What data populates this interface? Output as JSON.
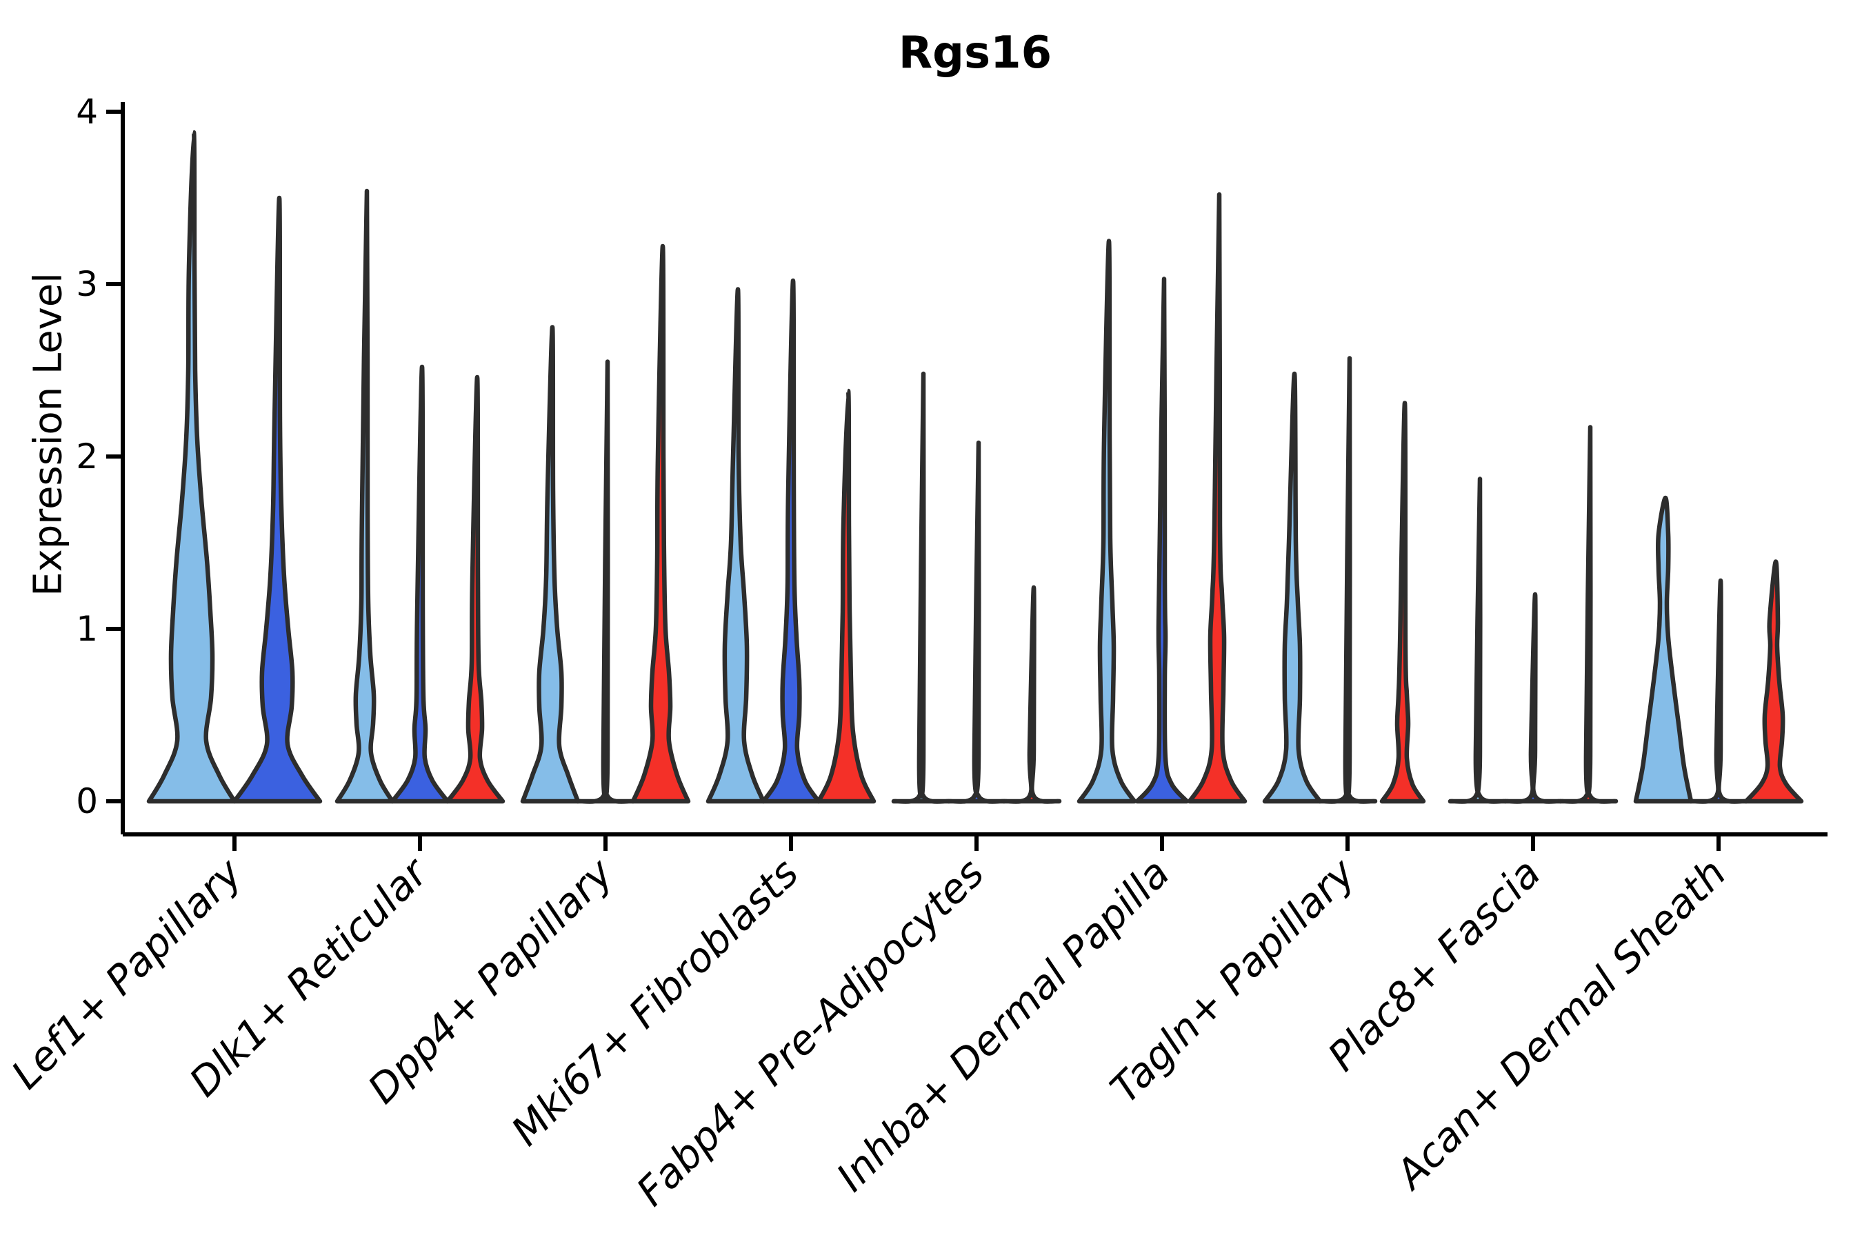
{
  "chart_data": {
    "type": "violin",
    "title": "Rgs16",
    "xlabel": "",
    "ylabel": "Expression Level",
    "ylim": [
      0,
      4
    ],
    "yticks": [
      0,
      1,
      2,
      3,
      4
    ],
    "grid": false,
    "legend_position": "none",
    "axis_color": "#000000",
    "outline_color": "#2d2d2d",
    "categories": [
      "Lef1+ Papillary",
      "Dlk1+ Reticular",
      "Dpp4+ Papillary",
      "Mki67+ Fibroblasts",
      "Fabp4+ Pre-Adipocytes",
      "Inhba+ Dermal Papilla",
      "Tagln+ Papillary",
      "Plac8+ Fascia",
      "Acan+ Dermal Sheath"
    ],
    "splits": [
      {
        "name": "light-blue",
        "color": "#85bde8"
      },
      {
        "name": "dark-blue",
        "color": "#3b61e0"
      },
      {
        "name": "red",
        "color": "#f43028"
      }
    ],
    "violins": [
      {
        "category": 0,
        "split": 0,
        "max": 3.88,
        "profile": [
          [
            0,
            62
          ],
          [
            0.15,
            40
          ],
          [
            0.35,
            21
          ],
          [
            0.6,
            28
          ],
          [
            0.85,
            30
          ],
          [
            1.1,
            27
          ],
          [
            1.4,
            22
          ],
          [
            1.75,
            14
          ],
          [
            2.1,
            8
          ],
          [
            2.5,
            5
          ],
          [
            3.1,
            4
          ],
          [
            3.88,
            3
          ]
        ]
      },
      {
        "category": 0,
        "split": 1,
        "max": 3.5,
        "profile": [
          [
            0,
            62
          ],
          [
            0.15,
            36
          ],
          [
            0.33,
            15
          ],
          [
            0.55,
            21
          ],
          [
            0.75,
            22
          ],
          [
            1.0,
            16
          ],
          [
            1.3,
            10
          ],
          [
            1.7,
            6
          ],
          [
            2.2,
            4
          ],
          [
            3.5,
            3
          ]
        ]
      },
      {
        "category": 1,
        "split": 0,
        "max": 3.54,
        "profile": [
          [
            0,
            40
          ],
          [
            0.12,
            22
          ],
          [
            0.28,
            9
          ],
          [
            0.45,
            12
          ],
          [
            0.62,
            13
          ],
          [
            0.85,
            8
          ],
          [
            1.15,
            5
          ],
          [
            1.7,
            4
          ],
          [
            3.54,
            3
          ]
        ]
      },
      {
        "category": 1,
        "split": 1,
        "max": 2.52,
        "profile": [
          [
            0,
            40
          ],
          [
            0.12,
            18
          ],
          [
            0.25,
            7
          ],
          [
            0.42,
            8
          ],
          [
            0.6,
            5
          ],
          [
            1.1,
            4
          ],
          [
            2.52,
            3
          ]
        ]
      },
      {
        "category": 1,
        "split": 2,
        "max": 2.46,
        "profile": [
          [
            0,
            40
          ],
          [
            0.12,
            18
          ],
          [
            0.25,
            7
          ],
          [
            0.42,
            10
          ],
          [
            0.58,
            9
          ],
          [
            0.8,
            5
          ],
          [
            1.3,
            4
          ],
          [
            2.46,
            3
          ]
        ]
      },
      {
        "category": 2,
        "split": 0,
        "max": 2.75,
        "profile": [
          [
            0,
            40
          ],
          [
            0.15,
            26
          ],
          [
            0.32,
            13
          ],
          [
            0.55,
            16
          ],
          [
            0.75,
            16
          ],
          [
            1.0,
            10
          ],
          [
            1.3,
            6
          ],
          [
            1.8,
            4
          ],
          [
            2.75,
            3
          ]
        ]
      },
      {
        "category": 2,
        "split": 1,
        "max": 2.55,
        "profile": [
          [
            0,
            40
          ],
          [
            0.03,
            3
          ],
          [
            0.3,
            3
          ],
          [
            2.55,
            3
          ]
        ]
      },
      {
        "category": 2,
        "split": 2,
        "max": 3.22,
        "profile": [
          [
            0,
            40
          ],
          [
            0.15,
            24
          ],
          [
            0.35,
            12
          ],
          [
            0.55,
            14
          ],
          [
            0.75,
            12
          ],
          [
            1.0,
            7
          ],
          [
            1.4,
            5
          ],
          [
            2.0,
            4
          ],
          [
            3.22,
            3
          ]
        ]
      },
      {
        "category": 3,
        "split": 0,
        "max": 2.97,
        "profile": [
          [
            0,
            40
          ],
          [
            0.15,
            24
          ],
          [
            0.35,
            12
          ],
          [
            0.6,
            15
          ],
          [
            0.9,
            16
          ],
          [
            1.2,
            12
          ],
          [
            1.5,
            7
          ],
          [
            2.0,
            4
          ],
          [
            2.97,
            3
          ]
        ]
      },
      {
        "category": 3,
        "split": 1,
        "max": 3.02,
        "profile": [
          [
            0,
            40
          ],
          [
            0.12,
            20
          ],
          [
            0.3,
            9
          ],
          [
            0.5,
            12
          ],
          [
            0.7,
            12
          ],
          [
            0.95,
            8
          ],
          [
            1.25,
            5
          ],
          [
            1.8,
            4
          ],
          [
            3.02,
            3
          ]
        ]
      },
      {
        "category": 3,
        "split": 2,
        "max": 2.38,
        "profile": [
          [
            0,
            40
          ],
          [
            0.15,
            22
          ],
          [
            0.4,
            10
          ],
          [
            0.7,
            7
          ],
          [
            1.1,
            5
          ],
          [
            1.6,
            4
          ],
          [
            2.38,
            3
          ]
        ]
      },
      {
        "category": 4,
        "split": 0,
        "max": 2.48,
        "profile": [
          [
            0,
            40
          ],
          [
            0.03,
            3
          ],
          [
            0.3,
            3
          ],
          [
            2.48,
            3
          ]
        ]
      },
      {
        "category": 4,
        "split": 1,
        "max": 2.08,
        "profile": [
          [
            0,
            40
          ],
          [
            0.03,
            3
          ],
          [
            0.3,
            3
          ],
          [
            2.08,
            3
          ]
        ]
      },
      {
        "category": 4,
        "split": 2,
        "max": 1.24,
        "profile": [
          [
            0,
            40
          ],
          [
            0.03,
            3
          ],
          [
            0.3,
            3
          ],
          [
            1.24,
            3
          ]
        ]
      },
      {
        "category": 5,
        "split": 0,
        "max": 3.25,
        "profile": [
          [
            0,
            40
          ],
          [
            0.12,
            20
          ],
          [
            0.3,
            8
          ],
          [
            0.6,
            9
          ],
          [
            0.9,
            10
          ],
          [
            1.15,
            8
          ],
          [
            1.5,
            5
          ],
          [
            2.1,
            4
          ],
          [
            3.25,
            3
          ]
        ]
      },
      {
        "category": 5,
        "split": 1,
        "max": 3.03,
        "profile": [
          [
            0,
            36
          ],
          [
            0.1,
            14
          ],
          [
            0.25,
            5
          ],
          [
            0.7,
            4
          ],
          [
            0.95,
            5
          ],
          [
            1.3,
            4
          ],
          [
            3.03,
            3
          ]
        ]
      },
      {
        "category": 5,
        "split": 2,
        "max": 3.52,
        "profile": [
          [
            0,
            40
          ],
          [
            0.12,
            20
          ],
          [
            0.3,
            8
          ],
          [
            0.65,
            9
          ],
          [
            0.95,
            10
          ],
          [
            1.2,
            7
          ],
          [
            1.6,
            4
          ],
          [
            3.52,
            3
          ]
        ]
      },
      {
        "category": 6,
        "split": 0,
        "max": 2.48,
        "profile": [
          [
            0,
            40
          ],
          [
            0.12,
            20
          ],
          [
            0.3,
            9
          ],
          [
            0.6,
            11
          ],
          [
            0.9,
            11
          ],
          [
            1.15,
            8
          ],
          [
            1.5,
            5
          ],
          [
            2.48,
            3
          ]
        ]
      },
      {
        "category": 6,
        "split": 1,
        "max": 2.57,
        "profile": [
          [
            0,
            40
          ],
          [
            0.03,
            3
          ],
          [
            0.3,
            3
          ],
          [
            2.57,
            3
          ]
        ]
      },
      {
        "category": 6,
        "split": 2,
        "max": 2.31,
        "profile": [
          [
            0,
            30
          ],
          [
            0.1,
            14
          ],
          [
            0.25,
            6
          ],
          [
            0.45,
            8
          ],
          [
            0.62,
            6
          ],
          [
            0.9,
            4
          ],
          [
            2.31,
            3
          ]
        ]
      },
      {
        "category": 7,
        "split": 0,
        "max": 1.87,
        "profile": [
          [
            0,
            40
          ],
          [
            0.03,
            3
          ],
          [
            0.3,
            3
          ],
          [
            1.87,
            3
          ]
        ]
      },
      {
        "category": 7,
        "split": 1,
        "max": 1.2,
        "profile": [
          [
            0,
            40
          ],
          [
            0.03,
            3
          ],
          [
            0.3,
            3
          ],
          [
            1.2,
            3
          ]
        ]
      },
      {
        "category": 7,
        "split": 2,
        "max": 2.17,
        "profile": [
          [
            0,
            40
          ],
          [
            0.03,
            3
          ],
          [
            0.3,
            3
          ],
          [
            2.17,
            3
          ]
        ]
      },
      {
        "category": 8,
        "split": 0,
        "max": 1.76,
        "profile": [
          [
            0,
            40
          ],
          [
            0.2,
            30
          ],
          [
            0.45,
            22
          ],
          [
            0.7,
            14
          ],
          [
            0.95,
            7
          ],
          [
            1.15,
            5
          ],
          [
            1.35,
            7
          ],
          [
            1.55,
            7
          ],
          [
            1.76,
            3
          ]
        ]
      },
      {
        "category": 8,
        "split": 1,
        "max": 1.28,
        "profile": [
          [
            0,
            40
          ],
          [
            0.03,
            3
          ],
          [
            0.3,
            3
          ],
          [
            1.28,
            3
          ]
        ]
      },
      {
        "category": 8,
        "split": 2,
        "max": 1.39,
        "profile": [
          [
            0,
            40
          ],
          [
            0.1,
            18
          ],
          [
            0.2,
            9
          ],
          [
            0.35,
            12
          ],
          [
            0.5,
            13
          ],
          [
            0.7,
            8
          ],
          [
            0.9,
            5
          ],
          [
            1.05,
            6
          ],
          [
            1.39,
            3
          ]
        ]
      }
    ]
  }
}
